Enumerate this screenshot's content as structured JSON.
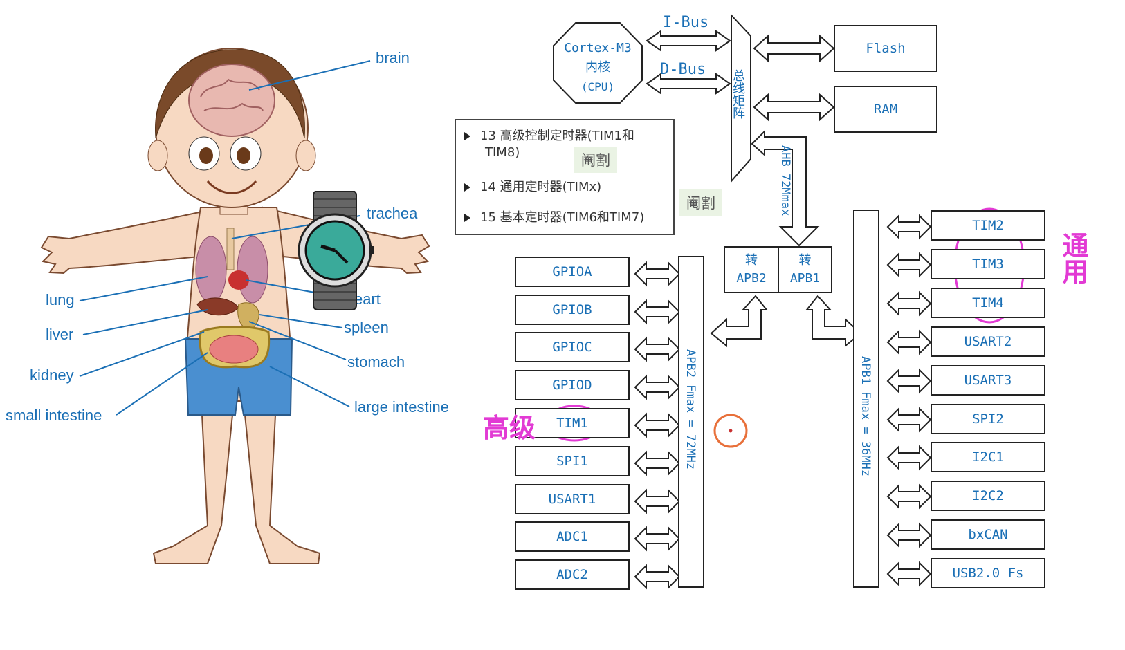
{
  "anatomy": {
    "labels": {
      "brain": "brain",
      "trachea": "trachea",
      "heart": "eart",
      "lung": "lung",
      "liver": "liver",
      "spleen": "spleen",
      "kidney": "kidney",
      "stomach": "stomach",
      "small_intestine": "small intestine",
      "large_intestine": "large intestine"
    }
  },
  "diagram": {
    "cpu": {
      "line1": "Cortex-M3",
      "line2": "内核",
      "line3": "(CPU)"
    },
    "ibus": "I-Bus",
    "dbus": "D-Bus",
    "matrix": "总线矩阵",
    "flash": "Flash",
    "ram": "RAM",
    "ahb": "AHB 72Mmax",
    "apb2_bridge": {
      "line1": "转",
      "line2": "APB2"
    },
    "apb1_bridge": {
      "line1": "转",
      "line2": "APB1"
    },
    "apb2_bus": "APB2 Fmax = 72MHz",
    "apb1_bus": "APB1 Fmax = 36MHz",
    "apb2_peripherals": [
      "GPIOA",
      "GPIOB",
      "GPIOC",
      "GPIOD",
      "TIM1",
      "SPI1",
      "USART1",
      "ADC1",
      "ADC2"
    ],
    "apb1_peripherals": [
      "TIM2",
      "TIM3",
      "TIM4",
      "USART2",
      "USART3",
      "SPI2",
      "I2C1",
      "I2C2",
      "bxCAN",
      "USB2.0 Fs"
    ]
  },
  "popup": {
    "items": [
      "13 高级控制定时器(TIM1和",
      "TIM8)",
      "14 通用定时器(TIMx)",
      "15 基本定时器(TIM6和TIM7)"
    ]
  },
  "notes": {
    "note1": "阉割",
    "note2": "阉割"
  },
  "handwriting": {
    "advanced": "高级",
    "general": "通用"
  },
  "colors": {
    "accent": "#1a6fb5",
    "annotation": "#e23ad4",
    "cursor": "#e8703a"
  }
}
